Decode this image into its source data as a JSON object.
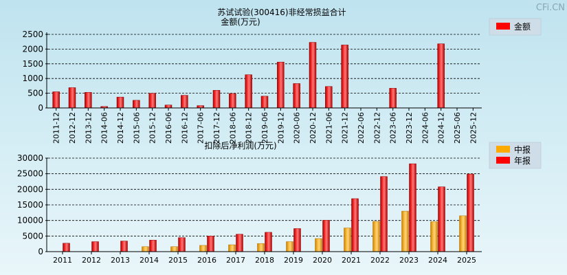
{
  "watermark": "CFi.CN",
  "chart_data": [
    {
      "type": "bar",
      "title": "苏试试验(300416)非经常损益合计",
      "ylabel": "金额(万元)",
      "ylim": [
        0,
        2500
      ],
      "yticks": [
        "0",
        "500",
        "1000",
        "1500",
        "2000",
        "2500"
      ],
      "grid": true,
      "legend_position": "right",
      "categories": [
        "2011-12",
        "2012-12",
        "2013-12",
        "2014-06",
        "2014-12",
        "2015-06",
        "2015-12",
        "2016-06",
        "2016-12",
        "2017-06",
        "2017-12",
        "2018-06",
        "2018-12",
        "2019-06",
        "2019-12",
        "2020-06",
        "2020-12",
        "2021-06",
        "2021-12",
        "2022-06",
        "2022-12",
        "2023-06",
        "2023-12",
        "2024-06",
        "2024-12",
        "2025-06",
        "2025-12"
      ],
      "series": [
        {
          "name": "金额",
          "color": "#ff0000",
          "values": [
            550,
            690,
            530,
            50,
            370,
            260,
            500,
            100,
            430,
            80,
            600,
            490,
            1130,
            400,
            1560,
            830,
            2230,
            730,
            2140,
            0,
            0,
            670,
            0,
            0,
            2180,
            0,
            0
          ]
        }
      ]
    },
    {
      "type": "bar",
      "title": "扣除后净利润(万元)",
      "ylim": [
        0,
        30000
      ],
      "yticks": [
        "0",
        "5000",
        "10000",
        "15000",
        "20000",
        "25000",
        "30000"
      ],
      "grid": true,
      "legend_position": "right",
      "categories": [
        "2011",
        "2012",
        "2013",
        "2014",
        "2015",
        "2016",
        "2017",
        "2018",
        "2019",
        "2020",
        "2021",
        "2022",
        "2023",
        "2024",
        "2025"
      ],
      "series": [
        {
          "name": "中报",
          "color": "#ffaa00",
          "values": [
            0,
            0,
            0,
            1600,
            1600,
            2000,
            2200,
            2600,
            3200,
            4200,
            7600,
            9700,
            13000,
            9600,
            11500
          ]
        },
        {
          "name": "年报",
          "color": "#ff0000",
          "values": [
            2700,
            3200,
            3400,
            3700,
            4500,
            5000,
            5600,
            6200,
            7400,
            10100,
            17000,
            24100,
            28200,
            20800,
            24900
          ]
        }
      ]
    }
  ]
}
